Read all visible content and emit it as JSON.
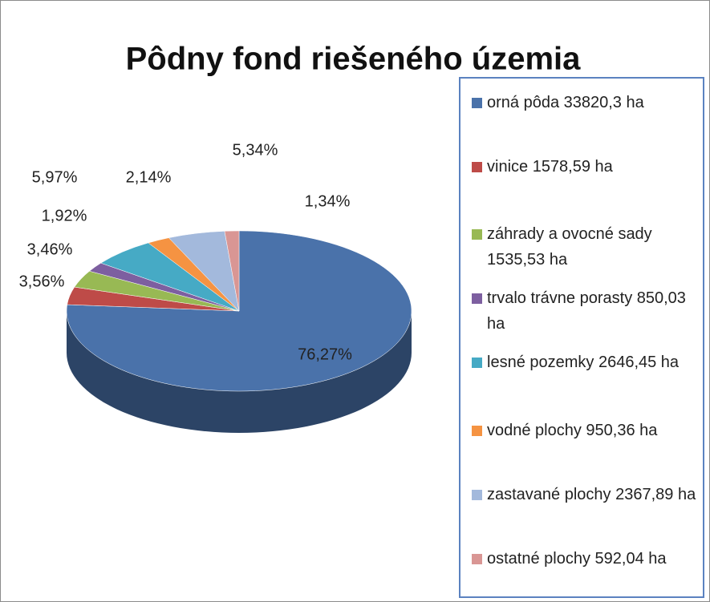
{
  "chart_data": {
    "type": "pie",
    "title": "Pôdny fond riešeného územia",
    "categories": [
      "orná pôda 33820,3 ha",
      "vinice 1578,59 ha",
      "záhrady a ovocné sady 1535,53 ha",
      "trvalo trávne porasty 850,03 ha",
      "lesné pozemky 2646,45 ha",
      "vodné plochy 950,36 ha",
      "zastavané plochy 2367,89 ha",
      "ostatné plochy 592,04 ha"
    ],
    "values": [
      76.27,
      3.56,
      3.46,
      1.92,
      5.97,
      2.14,
      5.34,
      1.34
    ],
    "value_labels": [
      "76,27%",
      "3,56%",
      "3,46%",
      "1,92%",
      "5,97%",
      "2,14%",
      "5,34%",
      "1,34%"
    ],
    "colors": [
      "#4a72aa",
      "#be4b48",
      "#98b954",
      "#7d5fa0",
      "#46aac5",
      "#f59342",
      "#a3b9dc",
      "#d99694"
    ]
  }
}
